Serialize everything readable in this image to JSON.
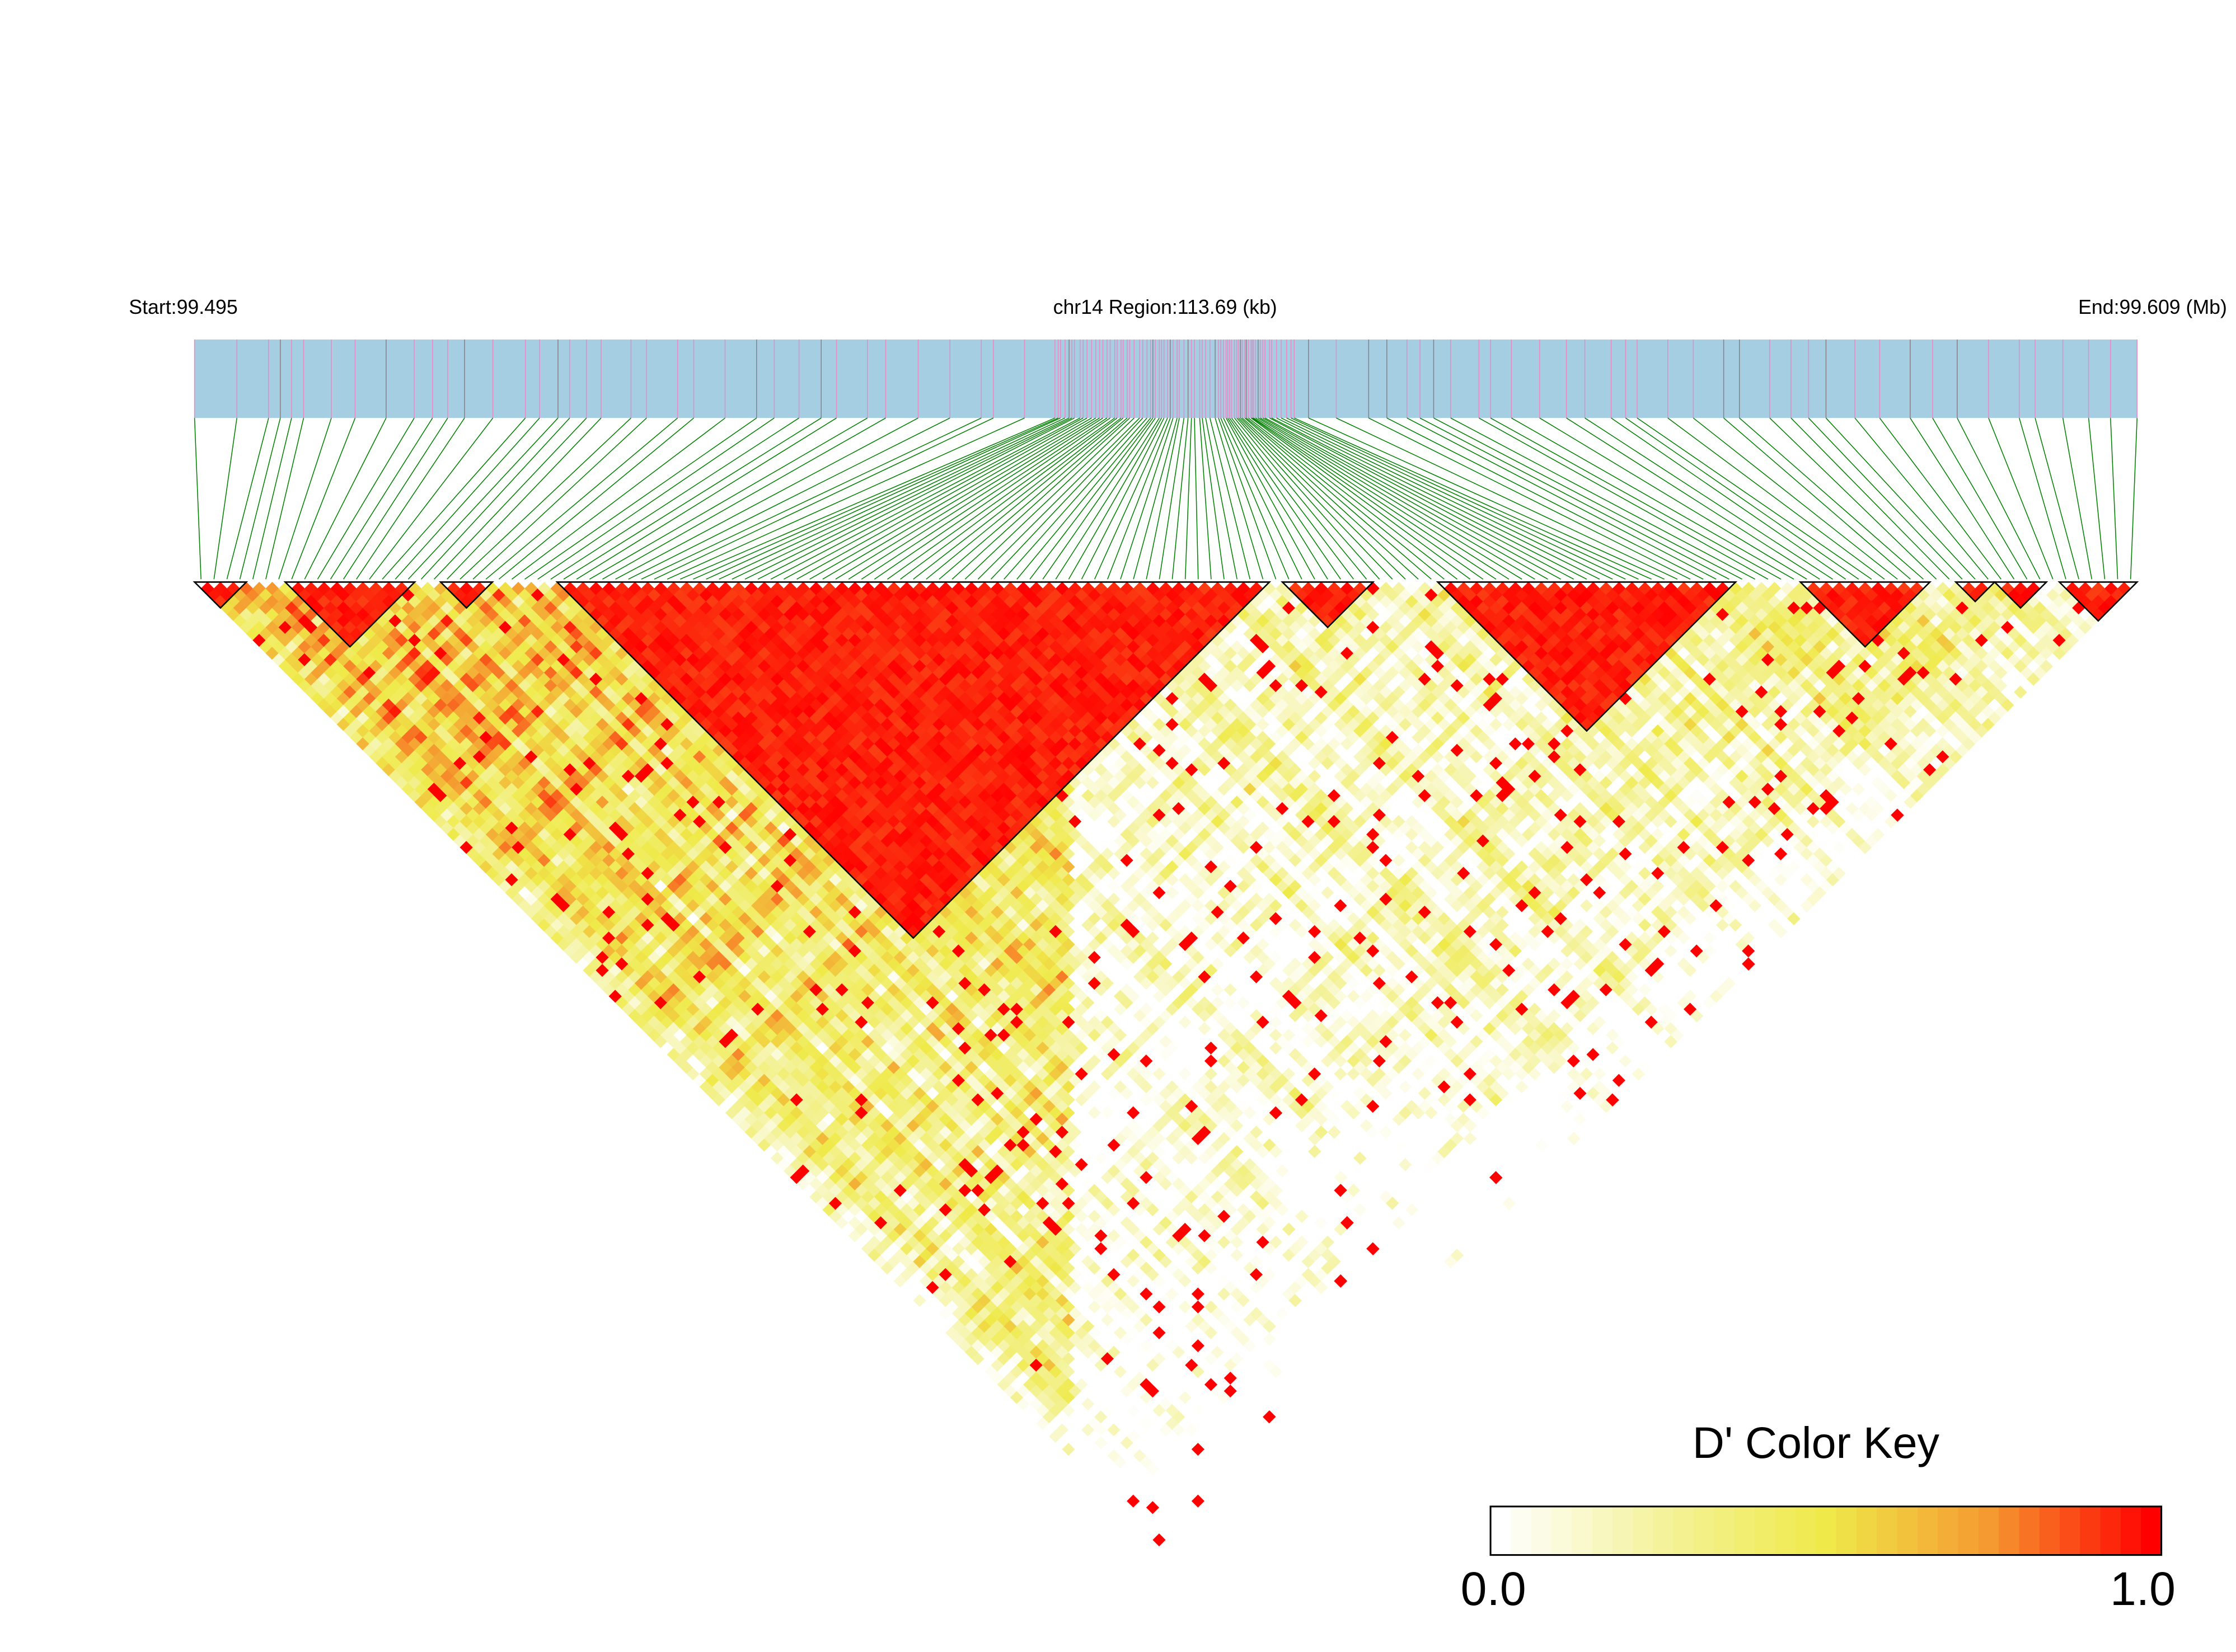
{
  "chart_data": {
    "type": "heatmap",
    "subtype": "LD heatmap (triangular, pairwise D')",
    "header": {
      "start_label": "Start:99.495",
      "region_label": "chr14 Region:113.69 (kb)",
      "end_label": "End:99.609 (Mb)"
    },
    "region": {
      "chromosome": "chr14",
      "start_mb": 99.495,
      "end_mb": 99.609,
      "length_kb": 113.69
    },
    "ld_blocks_mb": [
      [
        99.495,
        99.4983
      ],
      [
        99.5006,
        99.5079
      ],
      [
        99.5092,
        99.5125
      ],
      [
        99.5162,
        99.558
      ],
      [
        99.5592,
        99.5645
      ],
      [
        99.5676,
        99.5856
      ],
      [
        99.5891,
        99.5972
      ],
      [
        99.5985,
        99.6006
      ],
      [
        99.6008,
        99.6039
      ],
      [
        99.6048,
        99.609
      ]
    ],
    "color_key": {
      "title": "D' Color Key",
      "min_label": "0.0",
      "max_label": "1.0",
      "range": [
        0,
        1
      ],
      "stops": [
        "#ffffff",
        "#f4f29a",
        "#efea4a",
        "#f59a30",
        "#ff0000"
      ]
    },
    "colors": {
      "gene_bar": "#a6cee3",
      "snp_mark": "#e78ac3",
      "snp_mark_dark": "#8a7f86",
      "connector": "#008000",
      "block_outline": "#000000"
    }
  }
}
